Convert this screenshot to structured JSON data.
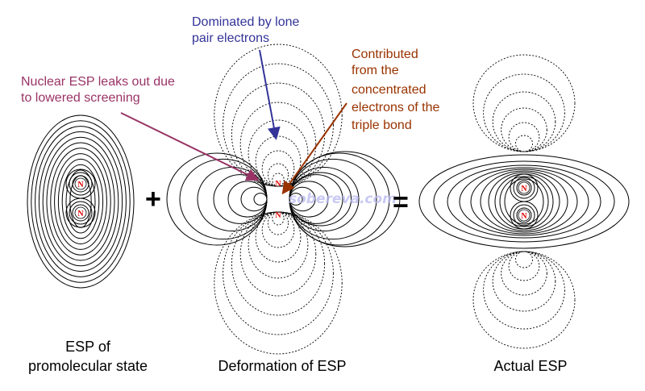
{
  "panels": {
    "promolecular": {
      "label_line1": "ESP of",
      "label_line2": "promolecular state"
    },
    "deformation": {
      "label": "Deformation of ESP"
    },
    "actual": {
      "label": "Actual ESP"
    }
  },
  "operators": {
    "plus": "+",
    "equals": "="
  },
  "nucleus_symbol": "N",
  "annotations": {
    "nuclear_leak": {
      "line1": "Nuclear ESP leaks out due",
      "line2": "to lowered screening",
      "color": "#993366"
    },
    "lone_pair": {
      "line1": "Dominated by lone",
      "line2": "pair electrons",
      "color": "#333399"
    },
    "triple_bond": {
      "line1": "Contributed",
      "line2": "from the",
      "line3": "concentrated",
      "line4": "electrons of the",
      "line5": "triple bond",
      "color": "#993300"
    }
  },
  "watermark": "sobereva.com",
  "colors": {
    "positive_contour": "#000000",
    "negative_contour": "#000000",
    "nucleus": "#e00000"
  }
}
